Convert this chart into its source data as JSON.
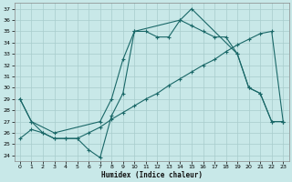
{
  "xlabel": "Humidex (Indice chaleur)",
  "background_color": "#c8e8e8",
  "grid_color": "#a8cccc",
  "line_color": "#1a6868",
  "xlim": [
    -0.5,
    23.5
  ],
  "ylim": [
    23.5,
    37.5
  ],
  "yticks": [
    24,
    25,
    26,
    27,
    28,
    29,
    30,
    31,
    32,
    33,
    34,
    35,
    36,
    37
  ],
  "xticks": [
    0,
    1,
    2,
    3,
    4,
    5,
    6,
    7,
    8,
    9,
    10,
    11,
    12,
    13,
    14,
    15,
    16,
    17,
    18,
    19,
    20,
    21,
    22,
    23
  ],
  "line1_x": [
    0,
    1,
    2,
    3,
    4,
    5,
    6,
    7,
    8,
    9,
    10,
    11,
    12,
    13,
    14,
    15,
    16,
    17,
    18,
    19,
    20,
    21,
    22,
    23
  ],
  "line1_y": [
    29.0,
    27.0,
    26.0,
    25.5,
    25.5,
    25.5,
    24.5,
    23.8,
    27.5,
    29.5,
    35.0,
    35.0,
    34.5,
    34.5,
    36.0,
    35.5,
    35.0,
    34.5,
    34.5,
    33.0,
    30.0,
    29.5,
    27.0,
    27.0
  ],
  "line2_x": [
    0,
    1,
    2,
    3,
    4,
    5,
    6,
    7,
    8,
    9,
    10,
    11,
    12,
    13,
    14,
    15,
    16,
    17,
    18,
    19,
    20,
    21,
    22,
    23
  ],
  "line2_y": [
    25.5,
    26.3,
    26.0,
    25.5,
    25.5,
    25.5,
    26.0,
    26.5,
    27.2,
    27.8,
    28.4,
    29.0,
    29.5,
    30.2,
    30.8,
    31.4,
    32.0,
    32.5,
    33.2,
    33.8,
    34.3,
    34.8,
    35.0,
    27.0
  ],
  "line3_x": [
    0,
    1,
    3,
    7,
    8,
    9,
    10,
    14,
    15,
    19,
    20,
    21,
    22,
    23
  ],
  "line3_y": [
    29.0,
    27.0,
    26.0,
    27.0,
    29.0,
    32.5,
    35.0,
    36.0,
    37.0,
    33.0,
    30.0,
    29.5,
    27.0,
    27.0
  ]
}
